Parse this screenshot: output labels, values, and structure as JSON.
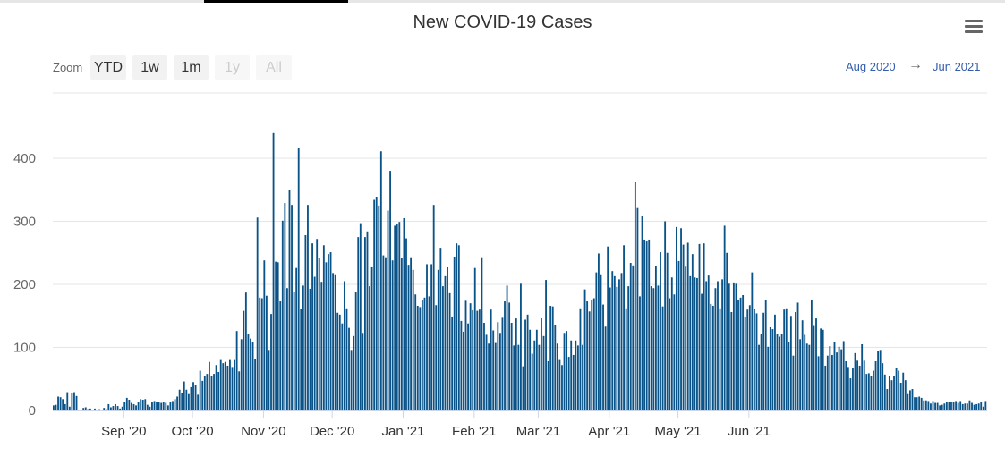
{
  "chart_data": {
    "type": "bar",
    "title": "New COVID-19 Cases",
    "xlabel": "",
    "ylabel": "",
    "x_range": [
      "Aug 2020",
      "Jun 2021"
    ],
    "ylim": [
      0,
      450
    ],
    "y_ticks": [
      0,
      100,
      200,
      300,
      400
    ],
    "y_tick_labels": [
      "0",
      "100",
      "200",
      "300",
      "400"
    ],
    "x_tick_labels": [
      "Sep '20",
      "Oct '20",
      "Nov '20",
      "Dec '20",
      "Jan '21",
      "Feb '21",
      "Mar '21",
      "Apr '21",
      "May '21",
      "Jun '21"
    ],
    "grid": true,
    "legend": "none",
    "bar_color": "#0a5388",
    "values": [
      8,
      9,
      22,
      21,
      18,
      10,
      29,
      6,
      27,
      29,
      23,
      0,
      0,
      4,
      5,
      2,
      3,
      1,
      3,
      0,
      2,
      1,
      4,
      2,
      10,
      5,
      7,
      10,
      7,
      3,
      6,
      13,
      20,
      17,
      12,
      10,
      8,
      13,
      18,
      17,
      18,
      9,
      6,
      13,
      15,
      14,
      13,
      12,
      13,
      12,
      8,
      14,
      15,
      18,
      22,
      33,
      27,
      46,
      33,
      26,
      37,
      45,
      40,
      25,
      63,
      47,
      55,
      58,
      77,
      54,
      58,
      72,
      61,
      80,
      75,
      77,
      71,
      80,
      69,
      80,
      126,
      62,
      113,
      158,
      187,
      121,
      114,
      108,
      82,
      306,
      179,
      178,
      238,
      182,
      96,
      153,
      440,
      236,
      235,
      173,
      301,
      329,
      194,
      349,
      326,
      188,
      226,
      417,
      161,
      198,
      278,
      326,
      193,
      265,
      212,
      272,
      242,
      204,
      262,
      235,
      248,
      251,
      218,
      216,
      155,
      152,
      138,
      205,
      162,
      131,
      96,
      118,
      188,
      275,
      297,
      123,
      275,
      284,
      197,
      227,
      334,
      339,
      325,
      411,
      246,
      243,
      317,
      380,
      238,
      293,
      295,
      299,
      242,
      305,
      273,
      231,
      243,
      223,
      184,
      166,
      164,
      175,
      179,
      232,
      181,
      232,
      326,
      167,
      223,
      258,
      197,
      213,
      227,
      186,
      149,
      244,
      265,
      262,
      142,
      125,
      174,
      138,
      170,
      159,
      226,
      158,
      160,
      243,
      139,
      120,
      106,
      160,
      127,
      107,
      140,
      123,
      147,
      173,
      198,
      171,
      139,
      103,
      146,
      104,
      201,
      70,
      144,
      152,
      128,
      90,
      111,
      128,
      104,
      146,
      118,
      207,
      78,
      166,
      165,
      135,
      106,
      80,
      72,
      123,
      126,
      85,
      111,
      88,
      111,
      103,
      162,
      104,
      192,
      173,
      157,
      175,
      178,
      219,
      249,
      216,
      168,
      133,
      260,
      195,
      221,
      213,
      196,
      208,
      218,
      262,
      162,
      197,
      234,
      230,
      363,
      321,
      181,
      308,
      271,
      268,
      271,
      197,
      194,
      229,
      198,
      251,
      165,
      300,
      250,
      178,
      211,
      184,
      291,
      237,
      289,
      263,
      228,
      266,
      213,
      248,
      211,
      210,
      264,
      185,
      265,
      205,
      214,
      169,
      166,
      194,
      205,
      162,
      208,
      293,
      250,
      201,
      156,
      203,
      201,
      175,
      179,
      183,
      149,
      160,
      167,
      219,
      161,
      154,
      104,
      121,
      155,
      175,
      101,
      132,
      129,
      152,
      121,
      117,
      122,
      160,
      162,
      109,
      150,
      87,
      156,
      171,
      113,
      143,
      120,
      106,
      104,
      175,
      134,
      146,
      86,
      130,
      128,
      71,
      87,
      102,
      88,
      109,
      92,
      101,
      97,
      110,
      78,
      69,
      51,
      68,
      91,
      79,
      71,
      105,
      79,
      58,
      59,
      54,
      63,
      78,
      95,
      96,
      75,
      57,
      34,
      55,
      48,
      54,
      68,
      63,
      44,
      60,
      48,
      26,
      32,
      34,
      21,
      21,
      22,
      20,
      16,
      16,
      15,
      11,
      15,
      12,
      12,
      8,
      9,
      11,
      13,
      14,
      14,
      14,
      15,
      12,
      15,
      10,
      11,
      11,
      16,
      12,
      9,
      10,
      11,
      13,
      6,
      15
    ]
  },
  "toolbar": {
    "zoom_label": "Zoom",
    "buttons": [
      {
        "label": "YTD",
        "enabled": true
      },
      {
        "label": "1w",
        "enabled": true
      },
      {
        "label": "1m",
        "enabled": true
      },
      {
        "label": "1y",
        "enabled": false
      },
      {
        "label": "All",
        "enabled": false
      }
    ]
  },
  "range": {
    "from": "Aug 2020",
    "arrow": "→",
    "to": "Jun 2021"
  },
  "menu": {
    "icon": "hamburger-menu-icon"
  }
}
